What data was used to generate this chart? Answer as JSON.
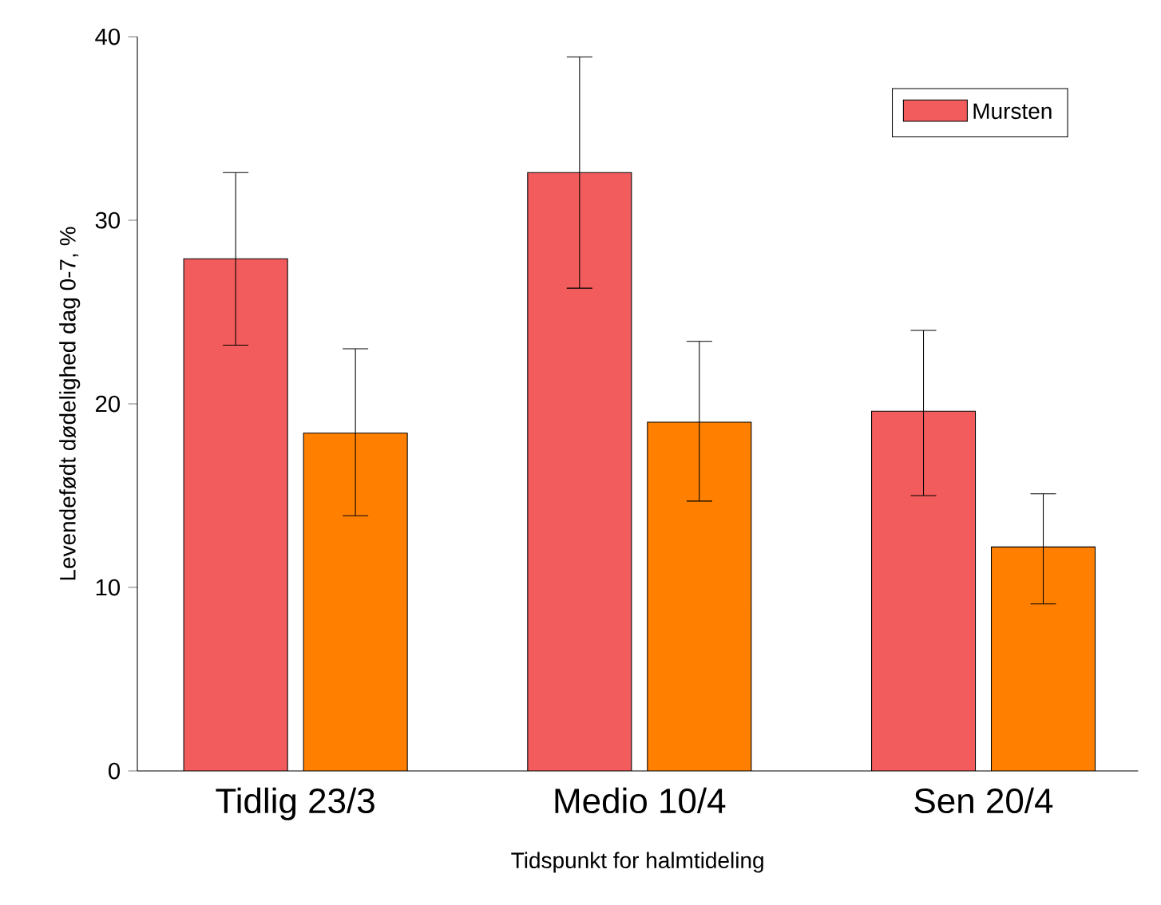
{
  "chart_data": {
    "type": "bar",
    "xlabel": "Tidspunkt for halmtideling",
    "ylabel": "Levendefødt dødelighed dag 0-7, %",
    "categories": [
      "Tidlig 23/3",
      "Medio 10/4",
      "Sen 20/4"
    ],
    "series": [
      {
        "name": "Mursten",
        "color": "#f25c5c",
        "values": [
          27.9,
          32.6,
          19.6
        ],
        "errors": [
          [
            23.2,
            32.6
          ],
          [
            26.3,
            38.9
          ],
          [
            15.0,
            24.0
          ]
        ]
      },
      {
        "color": "#ff8000",
        "values": [
          18.4,
          19.0,
          12.2
        ],
        "errors": [
          [
            13.9,
            23.0
          ],
          [
            14.7,
            23.4
          ],
          [
            9.1,
            15.1
          ]
        ]
      }
    ],
    "ylim": [
      0,
      40
    ],
    "yticks": [
      0,
      10,
      20,
      30,
      40
    ],
    "legend": "top right",
    "grid": false
  }
}
